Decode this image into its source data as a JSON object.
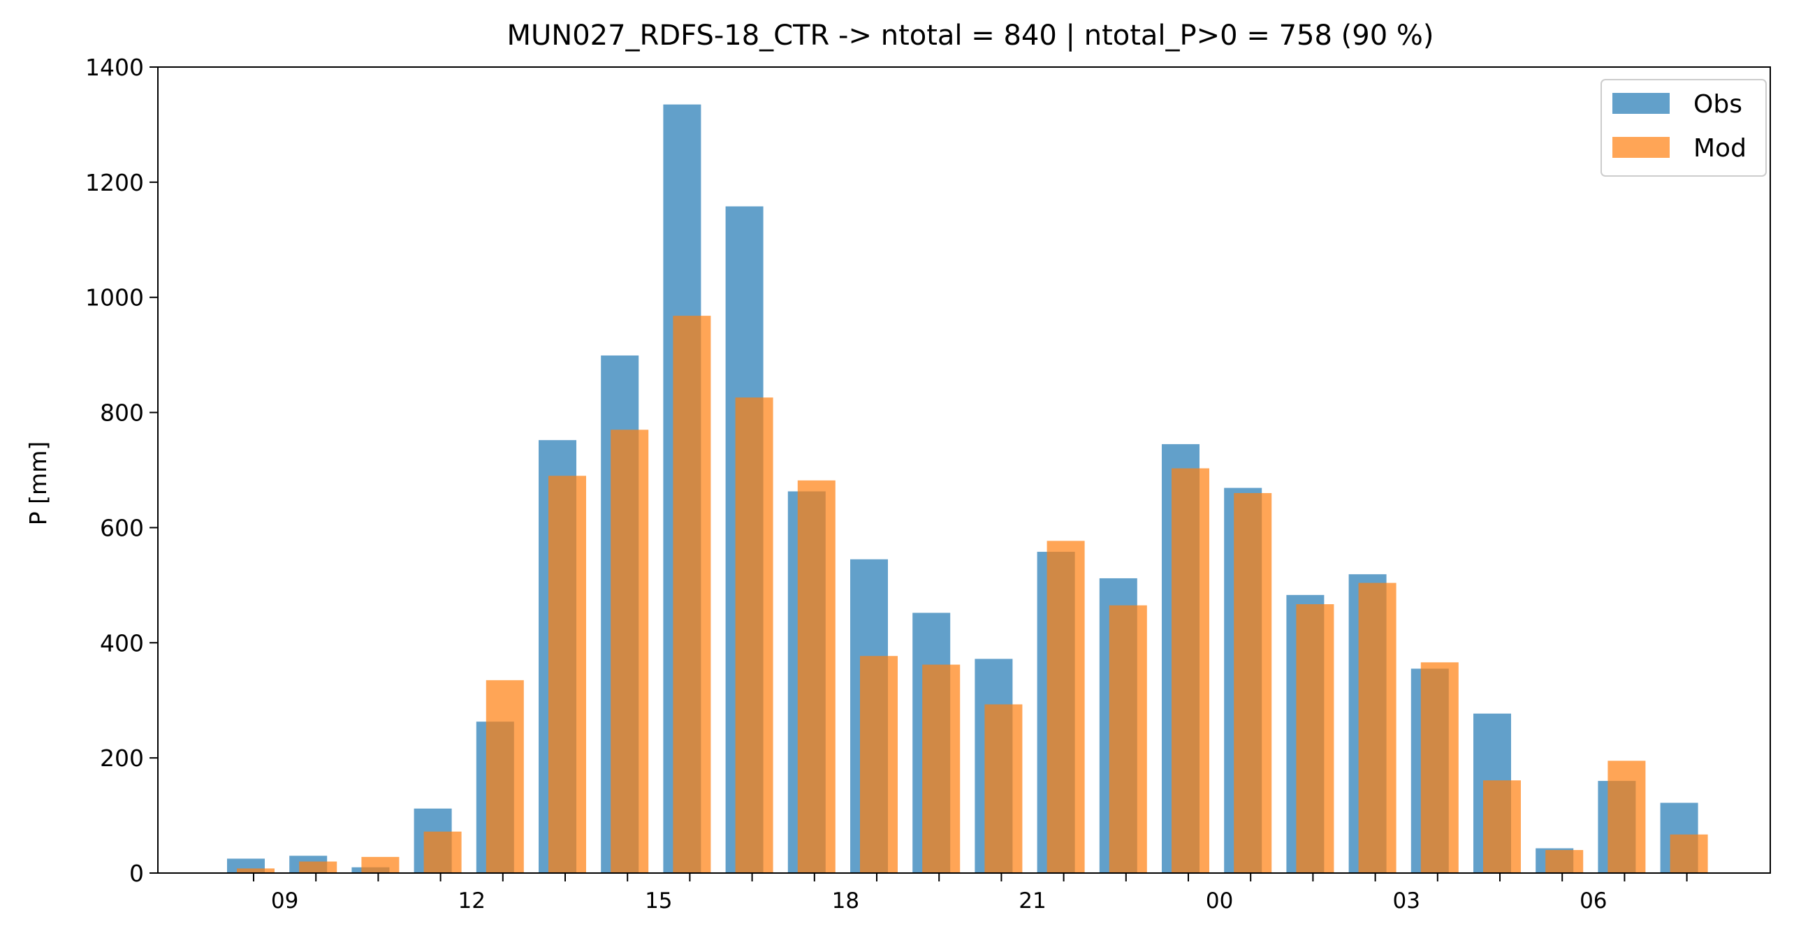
{
  "chart_data": {
    "type": "bar",
    "title": "MUN027_RDFS-18_CTR -> ntotal = 840 | ntotal_P>0 = 758 (90 %)",
    "xlabel": "",
    "ylabel": "P [mm]",
    "ylim": [
      0,
      1400
    ],
    "yticks": [
      "0",
      "200",
      "400",
      "600",
      "800",
      "1000",
      "1200",
      "1400"
    ],
    "hours": [
      "08",
      "09",
      "10",
      "11",
      "12",
      "13",
      "14",
      "15",
      "16",
      "17",
      "18",
      "19",
      "20",
      "21",
      "22",
      "23",
      "00",
      "01",
      "02",
      "03",
      "04",
      "05",
      "06",
      "07"
    ],
    "xtick_labels": [
      {
        "hour_index": 1,
        "label": "09"
      },
      {
        "hour_index": 4,
        "label": "12"
      },
      {
        "hour_index": 7,
        "label": "15"
      },
      {
        "hour_index": 10,
        "label": "18"
      },
      {
        "hour_index": 13,
        "label": "21"
      },
      {
        "hour_index": 16,
        "label": "00"
      },
      {
        "hour_index": 19,
        "label": "03"
      },
      {
        "hour_index": 22,
        "label": "06"
      }
    ],
    "series": [
      {
        "name": "Obs",
        "color": "#1f77b4",
        "values": [
          25,
          30,
          10,
          112,
          263,
          752,
          899,
          1335,
          1158,
          663,
          545,
          452,
          372,
          558,
          512,
          745,
          669,
          483,
          519,
          355,
          277,
          43,
          160,
          122
        ]
      },
      {
        "name": "Mod",
        "color": "#ff7f0e",
        "values": [
          8,
          20,
          28,
          72,
          335,
          690,
          770,
          968,
          826,
          682,
          377,
          362,
          293,
          577,
          465,
          703,
          660,
          467,
          504,
          366,
          161,
          40,
          195,
          67
        ]
      }
    ],
    "legend_position": "top-right",
    "grid": false
  }
}
